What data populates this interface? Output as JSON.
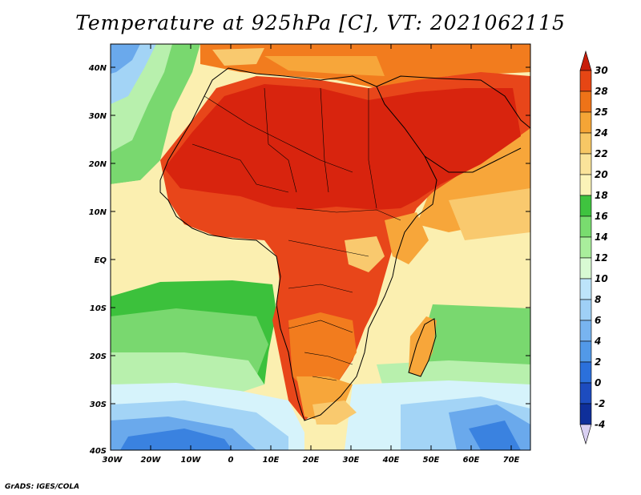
{
  "title": "Temperature at 925hPa [C], VT: 2021062115",
  "credit": "GrADS: IGES/COLA",
  "lat_labels": [
    "40N",
    "30N",
    "20N",
    "10N",
    "EQ",
    "10S",
    "20S",
    "30S",
    "40S"
  ],
  "lon_labels": [
    "30W",
    "20W",
    "10W",
    "0",
    "10E",
    "20E",
    "30E",
    "40E",
    "50E",
    "60E",
    "70E"
  ],
  "colorbar": {
    "labels": [
      "30",
      "28",
      "25",
      "24",
      "22",
      "20",
      "18",
      "16",
      "14",
      "12",
      "10",
      "8",
      "6",
      "4",
      "2",
      "0",
      "-2",
      "-4"
    ],
    "colors": [
      "#c81e0a",
      "#e64614",
      "#ee7318",
      "#f5a536",
      "#f7c765",
      "#fae39a",
      "#fbf3b8",
      "#3fc33f",
      "#79dc6f",
      "#a9ee9c",
      "#d8fad3",
      "#bde4fa",
      "#9fd0f6",
      "#78b4f0",
      "#5299e8",
      "#2b70db",
      "#1d4cbf",
      "#0f2f9a",
      "#06197a"
    ]
  },
  "colors": {
    "hot_core": "#d8240e",
    "hot": "#e8461a",
    "warm_orange": "#f27c1e",
    "orange": "#f7a63a",
    "light_orange": "#f9c96e",
    "pale_yellow": "#fbefb0",
    "green_dark": "#3cc13c",
    "green": "#7ad872",
    "green_light": "#b8f0ad",
    "pale_blue": "#d6f3fb",
    "light_blue": "#a3d4f6",
    "mid_blue": "#6aa9ec",
    "blue": "#3a82e0"
  }
}
